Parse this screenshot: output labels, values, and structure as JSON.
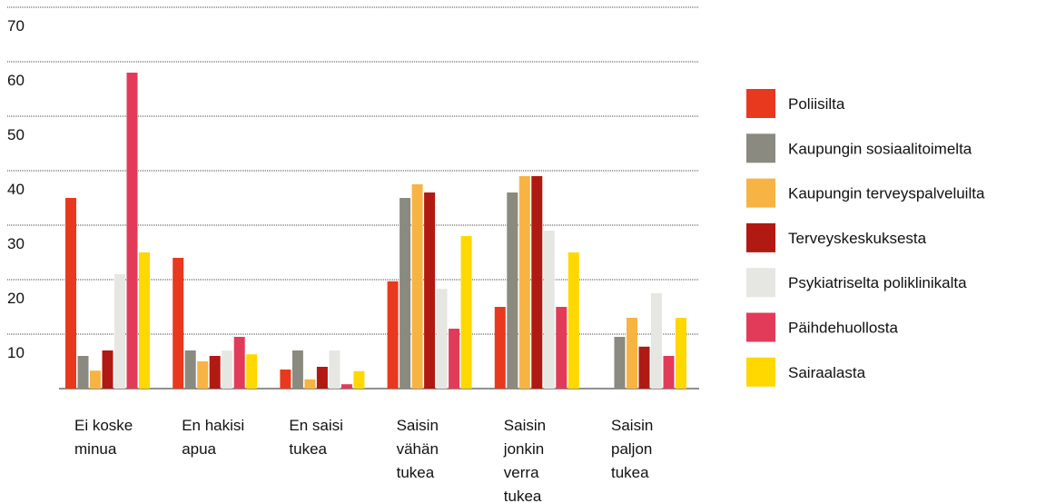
{
  "chart_data": {
    "type": "bar",
    "categories": [
      "Ei koske minua",
      "En hakisi apua",
      "En saisi tukea",
      "Saisin vähän tukea",
      "Saisin jonkin verra tukea",
      "Saisin paljon tukea"
    ],
    "series": [
      {
        "name": "Poliisilta",
        "color": "#e8391e",
        "values": [
          35,
          24,
          3.5,
          19.7,
          15,
          null
        ]
      },
      {
        "name": "Kaupungin sosiaalitoimelta",
        "color": "#8a8a80",
        "values": [
          6,
          7,
          7,
          35,
          36,
          9.5
        ]
      },
      {
        "name": "Kaupungin terveyspalveluilta",
        "color": "#f7b443",
        "values": [
          3.3,
          5,
          1.7,
          37.5,
          39,
          13
        ]
      },
      {
        "name": "Terveyskeskuksesta",
        "color": "#b01a12",
        "values": [
          7,
          6,
          4,
          36,
          39,
          7.7
        ]
      },
      {
        "name": "Psykiatriselta poliklinikalta",
        "color": "#e6e6e3",
        "values": [
          21,
          7,
          7,
          18.3,
          29,
          17.5
        ]
      },
      {
        "name": "Päihdehuollosta",
        "color": "#e23b5a",
        "values": [
          58,
          9.5,
          0.8,
          11,
          15,
          6
        ]
      },
      {
        "name": "Sairaalasta",
        "color": "#ffd800",
        "values": [
          25,
          6.3,
          3.2,
          28,
          25,
          13
        ]
      }
    ],
    "ylim": [
      0,
      70
    ],
    "yticks": [
      10,
      20,
      30,
      40,
      50,
      60,
      70
    ],
    "grid": true,
    "legend": "right"
  }
}
